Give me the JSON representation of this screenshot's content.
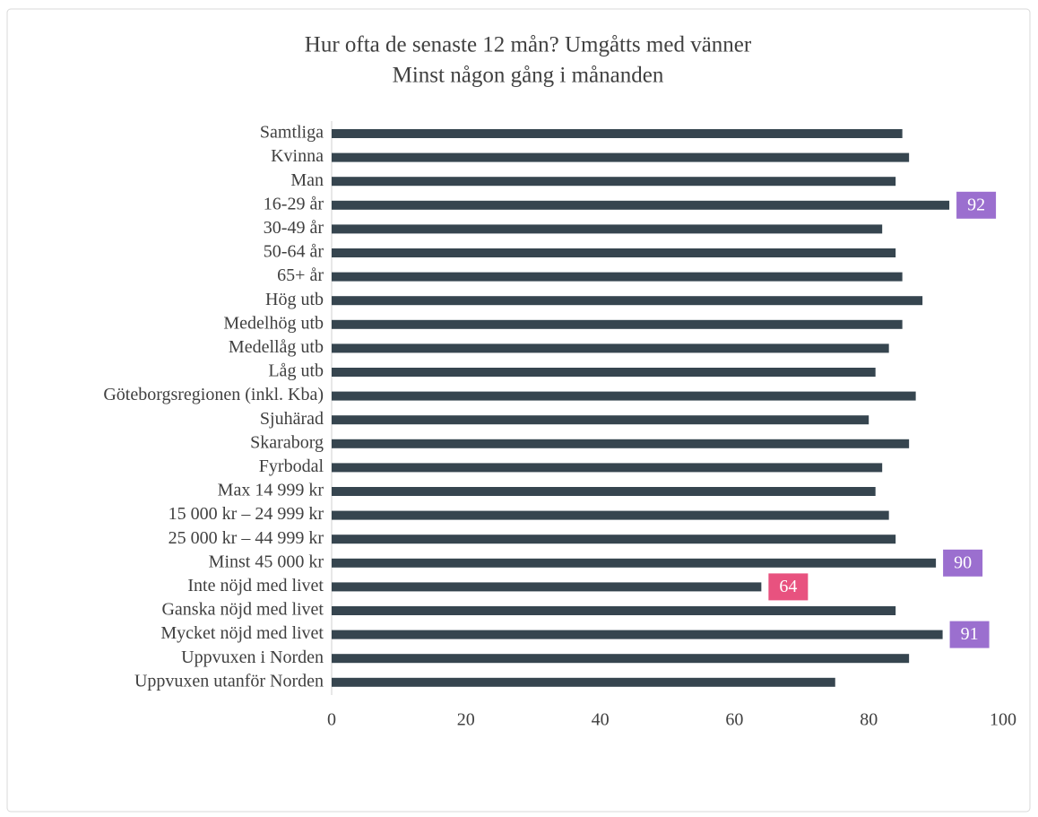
{
  "chart_data": {
    "type": "barh",
    "title": "Hur ofta de senaste 12 mån? Umgåtts med vänner",
    "subtitle": "Minst någon gång i månanden",
    "categories": [
      "Samtliga",
      "Kvinna",
      "Man",
      "16-29 år",
      "30-49 år",
      "50-64 år",
      "65+ år",
      "Hög utb",
      "Medelhög utb",
      "Medellåg utb",
      "Låg utb",
      "Göteborgsregionen (inkl. Kba)",
      "Sjuhärad",
      "Skaraborg",
      "Fyrbodal",
      "Max 14 999 kr",
      "15 000 kr – 24 999 kr",
      "25 000 kr – 44 999 kr",
      "Minst 45 000 kr",
      "Inte nöjd med livet",
      "Ganska nöjd med livet",
      "Mycket nöjd med livet",
      "Uppvuxen i Norden",
      "Uppvuxen utanför Norden"
    ],
    "values": [
      85,
      86,
      84,
      92,
      82,
      84,
      85,
      88,
      85,
      83,
      81,
      87,
      80,
      86,
      82,
      81,
      83,
      84,
      90,
      64,
      84,
      91,
      86,
      75
    ],
    "label_colors": [
      null,
      null,
      null,
      "#9b6fcf",
      null,
      null,
      null,
      null,
      null,
      null,
      null,
      null,
      null,
      null,
      null,
      null,
      null,
      null,
      "#9b6fcf",
      "#e8527f",
      null,
      "#9b6fcf",
      null,
      null
    ],
    "color": "#36454f",
    "xlim": [
      0,
      100
    ],
    "xticks": [
      0,
      20,
      40,
      60,
      80,
      100
    ]
  }
}
